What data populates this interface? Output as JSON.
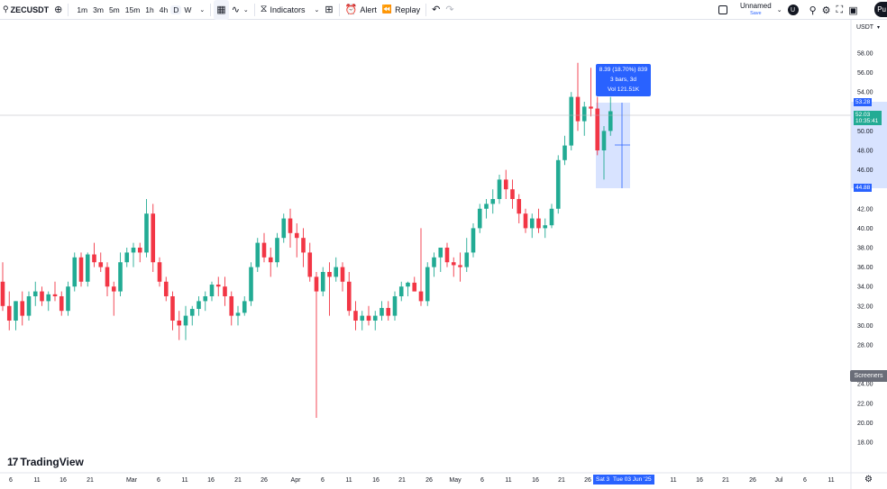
{
  "toolbar": {
    "symbol": "ZECUSDT",
    "intervals": [
      "1m",
      "3m",
      "5m",
      "15m",
      "1h",
      "4h",
      "D",
      "W"
    ],
    "active_interval": "D",
    "indicators_label": "Indicators",
    "alert_label": "Alert",
    "replay_label": "Replay",
    "layout_name": "Unnamed",
    "save_label": "Save",
    "avatar_letter": "U",
    "publish_label": "Pu"
  },
  "price_axis": {
    "currency": "USDT",
    "ticks": [
      "58.00",
      "56.00",
      "54.00",
      "50.00",
      "48.00",
      "46.00",
      "42.00",
      "40.00",
      "38.00",
      "36.00",
      "34.00",
      "32.00",
      "30.00",
      "28.00",
      "24.00",
      "22.00",
      "20.00",
      "18.00"
    ],
    "measure_high_tag": "53.28",
    "current_price_tag": "52.03",
    "countdown_tag": "10:35:41",
    "measure_low_tag": "44.88",
    "screeners_label": "Screeners"
  },
  "time_axis": {
    "ticks": [
      "6",
      "11",
      "16",
      "21",
      "Mar",
      "6",
      "11",
      "16",
      "21",
      "26",
      "Apr",
      "6",
      "11",
      "16",
      "21",
      "26",
      "May",
      "6",
      "11",
      "16",
      "21",
      "26",
      "11",
      "16",
      "21",
      "26",
      "Jul",
      "6",
      "11"
    ],
    "start_tag": "Sat 3",
    "end_tag": "Tue 03 Jun '25"
  },
  "measure": {
    "line1": "8.39 (18.70%) 839",
    "line2": "3 bars, 3d",
    "line3": "Vol 121.51K"
  },
  "logo_text": "TradingView",
  "colors": {
    "up": "#22ab94",
    "down": "#f23645",
    "accent": "#2962ff",
    "current_price": "#22ab94"
  },
  "chart_data": {
    "type": "candlestick",
    "ylim": [
      17,
      60
    ],
    "candles": [
      [
        34.5,
        36.5,
        31.5,
        32.0
      ],
      [
        32.0,
        33.5,
        29.5,
        30.5
      ],
      [
        30.5,
        32.5,
        29.5,
        32.5
      ],
      [
        32.5,
        33.5,
        30.0,
        31.0
      ],
      [
        31.0,
        33.5,
        30.5,
        33.0
      ],
      [
        33.0,
        34.5,
        32.0,
        33.5
      ],
      [
        33.5,
        34.0,
        32.0,
        32.5
      ],
      [
        32.5,
        33.5,
        31.5,
        33.2
      ],
      [
        33.2,
        34.5,
        32.5,
        33.0
      ],
      [
        33.0,
        33.5,
        31.0,
        31.5
      ],
      [
        31.5,
        34.5,
        31.0,
        34.0
      ],
      [
        34.0,
        37.5,
        33.5,
        37.0
      ],
      [
        37.0,
        37.5,
        34.0,
        34.5
      ],
      [
        34.5,
        37.5,
        34.0,
        37.3
      ],
      [
        37.3,
        38.5,
        36.0,
        36.5
      ],
      [
        36.5,
        37.5,
        35.5,
        36.0
      ],
      [
        36.0,
        36.5,
        33.0,
        34.0
      ],
      [
        34.0,
        34.5,
        31.0,
        33.5
      ],
      [
        33.5,
        37.5,
        33.0,
        36.5
      ],
      [
        36.5,
        38.0,
        36.0,
        37.5
      ],
      [
        37.5,
        38.5,
        36.0,
        38.0
      ],
      [
        38.0,
        38.5,
        36.5,
        37.5
      ],
      [
        37.5,
        43.0,
        37.0,
        41.5
      ],
      [
        41.5,
        42.5,
        35.5,
        36.5
      ],
      [
        36.5,
        37.0,
        34.0,
        34.5
      ],
      [
        34.5,
        35.0,
        32.5,
        33.0
      ],
      [
        33.0,
        33.5,
        29.5,
        30.5
      ],
      [
        30.5,
        31.5,
        28.5,
        30.0
      ],
      [
        30.0,
        32.0,
        28.5,
        31.0
      ],
      [
        31.0,
        32.0,
        30.0,
        31.7
      ],
      [
        31.7,
        33.0,
        31.0,
        32.5
      ],
      [
        32.5,
        33.5,
        31.5,
        33.0
      ],
      [
        33.0,
        34.5,
        32.5,
        34.2
      ],
      [
        34.2,
        35.0,
        33.0,
        34.0
      ],
      [
        34.0,
        35.0,
        32.0,
        33.0
      ],
      [
        33.0,
        33.5,
        30.0,
        31.0
      ],
      [
        31.0,
        32.0,
        30.0,
        31.3
      ],
      [
        31.3,
        33.0,
        31.0,
        32.5
      ],
      [
        32.5,
        36.5,
        32.0,
        36.0
      ],
      [
        36.0,
        39.0,
        35.5,
        38.5
      ],
      [
        38.5,
        39.5,
        36.5,
        37.0
      ],
      [
        37.0,
        38.0,
        35.0,
        36.5
      ],
      [
        36.5,
        39.5,
        36.0,
        39.0
      ],
      [
        39.0,
        41.5,
        38.5,
        41.0
      ],
      [
        41.0,
        42.0,
        38.0,
        39.5
      ],
      [
        39.5,
        40.5,
        37.0,
        39.0
      ],
      [
        39.0,
        40.0,
        36.0,
        37.5
      ],
      [
        37.5,
        38.5,
        34.5,
        35.0
      ],
      [
        35.0,
        35.5,
        20.5,
        33.5
      ],
      [
        33.5,
        36.0,
        33.0,
        35.5
      ],
      [
        35.5,
        36.5,
        31.0,
        35.0
      ],
      [
        35.0,
        37.0,
        34.5,
        36.0
      ],
      [
        36.0,
        36.5,
        33.5,
        34.5
      ],
      [
        34.5,
        35.5,
        31.0,
        31.5
      ],
      [
        31.5,
        32.5,
        29.5,
        30.5
      ],
      [
        30.5,
        31.5,
        29.5,
        31.0
      ],
      [
        31.0,
        32.0,
        30.0,
        30.5
      ],
      [
        30.5,
        31.5,
        29.5,
        31.0
      ],
      [
        31.0,
        32.5,
        30.5,
        31.8
      ],
      [
        31.8,
        32.5,
        30.5,
        31.0
      ],
      [
        31.0,
        33.5,
        30.5,
        33.0
      ],
      [
        33.0,
        34.5,
        32.5,
        34.0
      ],
      [
        34.0,
        34.5,
        33.0,
        34.4
      ],
      [
        34.4,
        35.0,
        33.5,
        33.5
      ],
      [
        33.5,
        40.0,
        32.0,
        32.5
      ],
      [
        32.5,
        36.5,
        32.0,
        36.0
      ],
      [
        36.0,
        37.5,
        35.0,
        37.0
      ],
      [
        37.0,
        38.0,
        35.5,
        38.0
      ],
      [
        38.0,
        38.5,
        36.0,
        36.5
      ],
      [
        36.5,
        37.0,
        35.0,
        36.2
      ],
      [
        36.2,
        37.5,
        34.5,
        36.0
      ],
      [
        36.0,
        39.0,
        35.5,
        37.5
      ],
      [
        37.5,
        40.5,
        37.0,
        40.0
      ],
      [
        40.0,
        42.5,
        39.5,
        42.0
      ],
      [
        42.0,
        43.0,
        41.0,
        42.5
      ],
      [
        42.5,
        44.0,
        41.5,
        43.0
      ],
      [
        43.0,
        45.5,
        42.5,
        45.0
      ],
      [
        45.0,
        46.0,
        43.0,
        44.0
      ],
      [
        44.0,
        45.0,
        42.0,
        43.0
      ],
      [
        43.0,
        43.5,
        40.5,
        41.5
      ],
      [
        41.5,
        42.0,
        39.5,
        40.0
      ],
      [
        40.0,
        41.5,
        39.0,
        41.0
      ],
      [
        41.0,
        42.0,
        39.5,
        40.0
      ],
      [
        40.0,
        41.0,
        39.0,
        40.3
      ],
      [
        40.3,
        42.5,
        40.0,
        42.0
      ],
      [
        42.0,
        47.5,
        41.5,
        47.0
      ],
      [
        47.0,
        49.5,
        46.5,
        48.5
      ],
      [
        48.5,
        54.0,
        48.0,
        53.5
      ],
      [
        53.5,
        57.0,
        50.0,
        51.0
      ],
      [
        51.0,
        53.0,
        49.5,
        52.5
      ],
      [
        52.5,
        56.5,
        51.5,
        52.3
      ],
      [
        52.3,
        53.5,
        47.5,
        48.0
      ],
      [
        48.0,
        50.5,
        45.0,
        50.0
      ],
      [
        50.0,
        53.5,
        49.5,
        52.03
      ]
    ]
  }
}
